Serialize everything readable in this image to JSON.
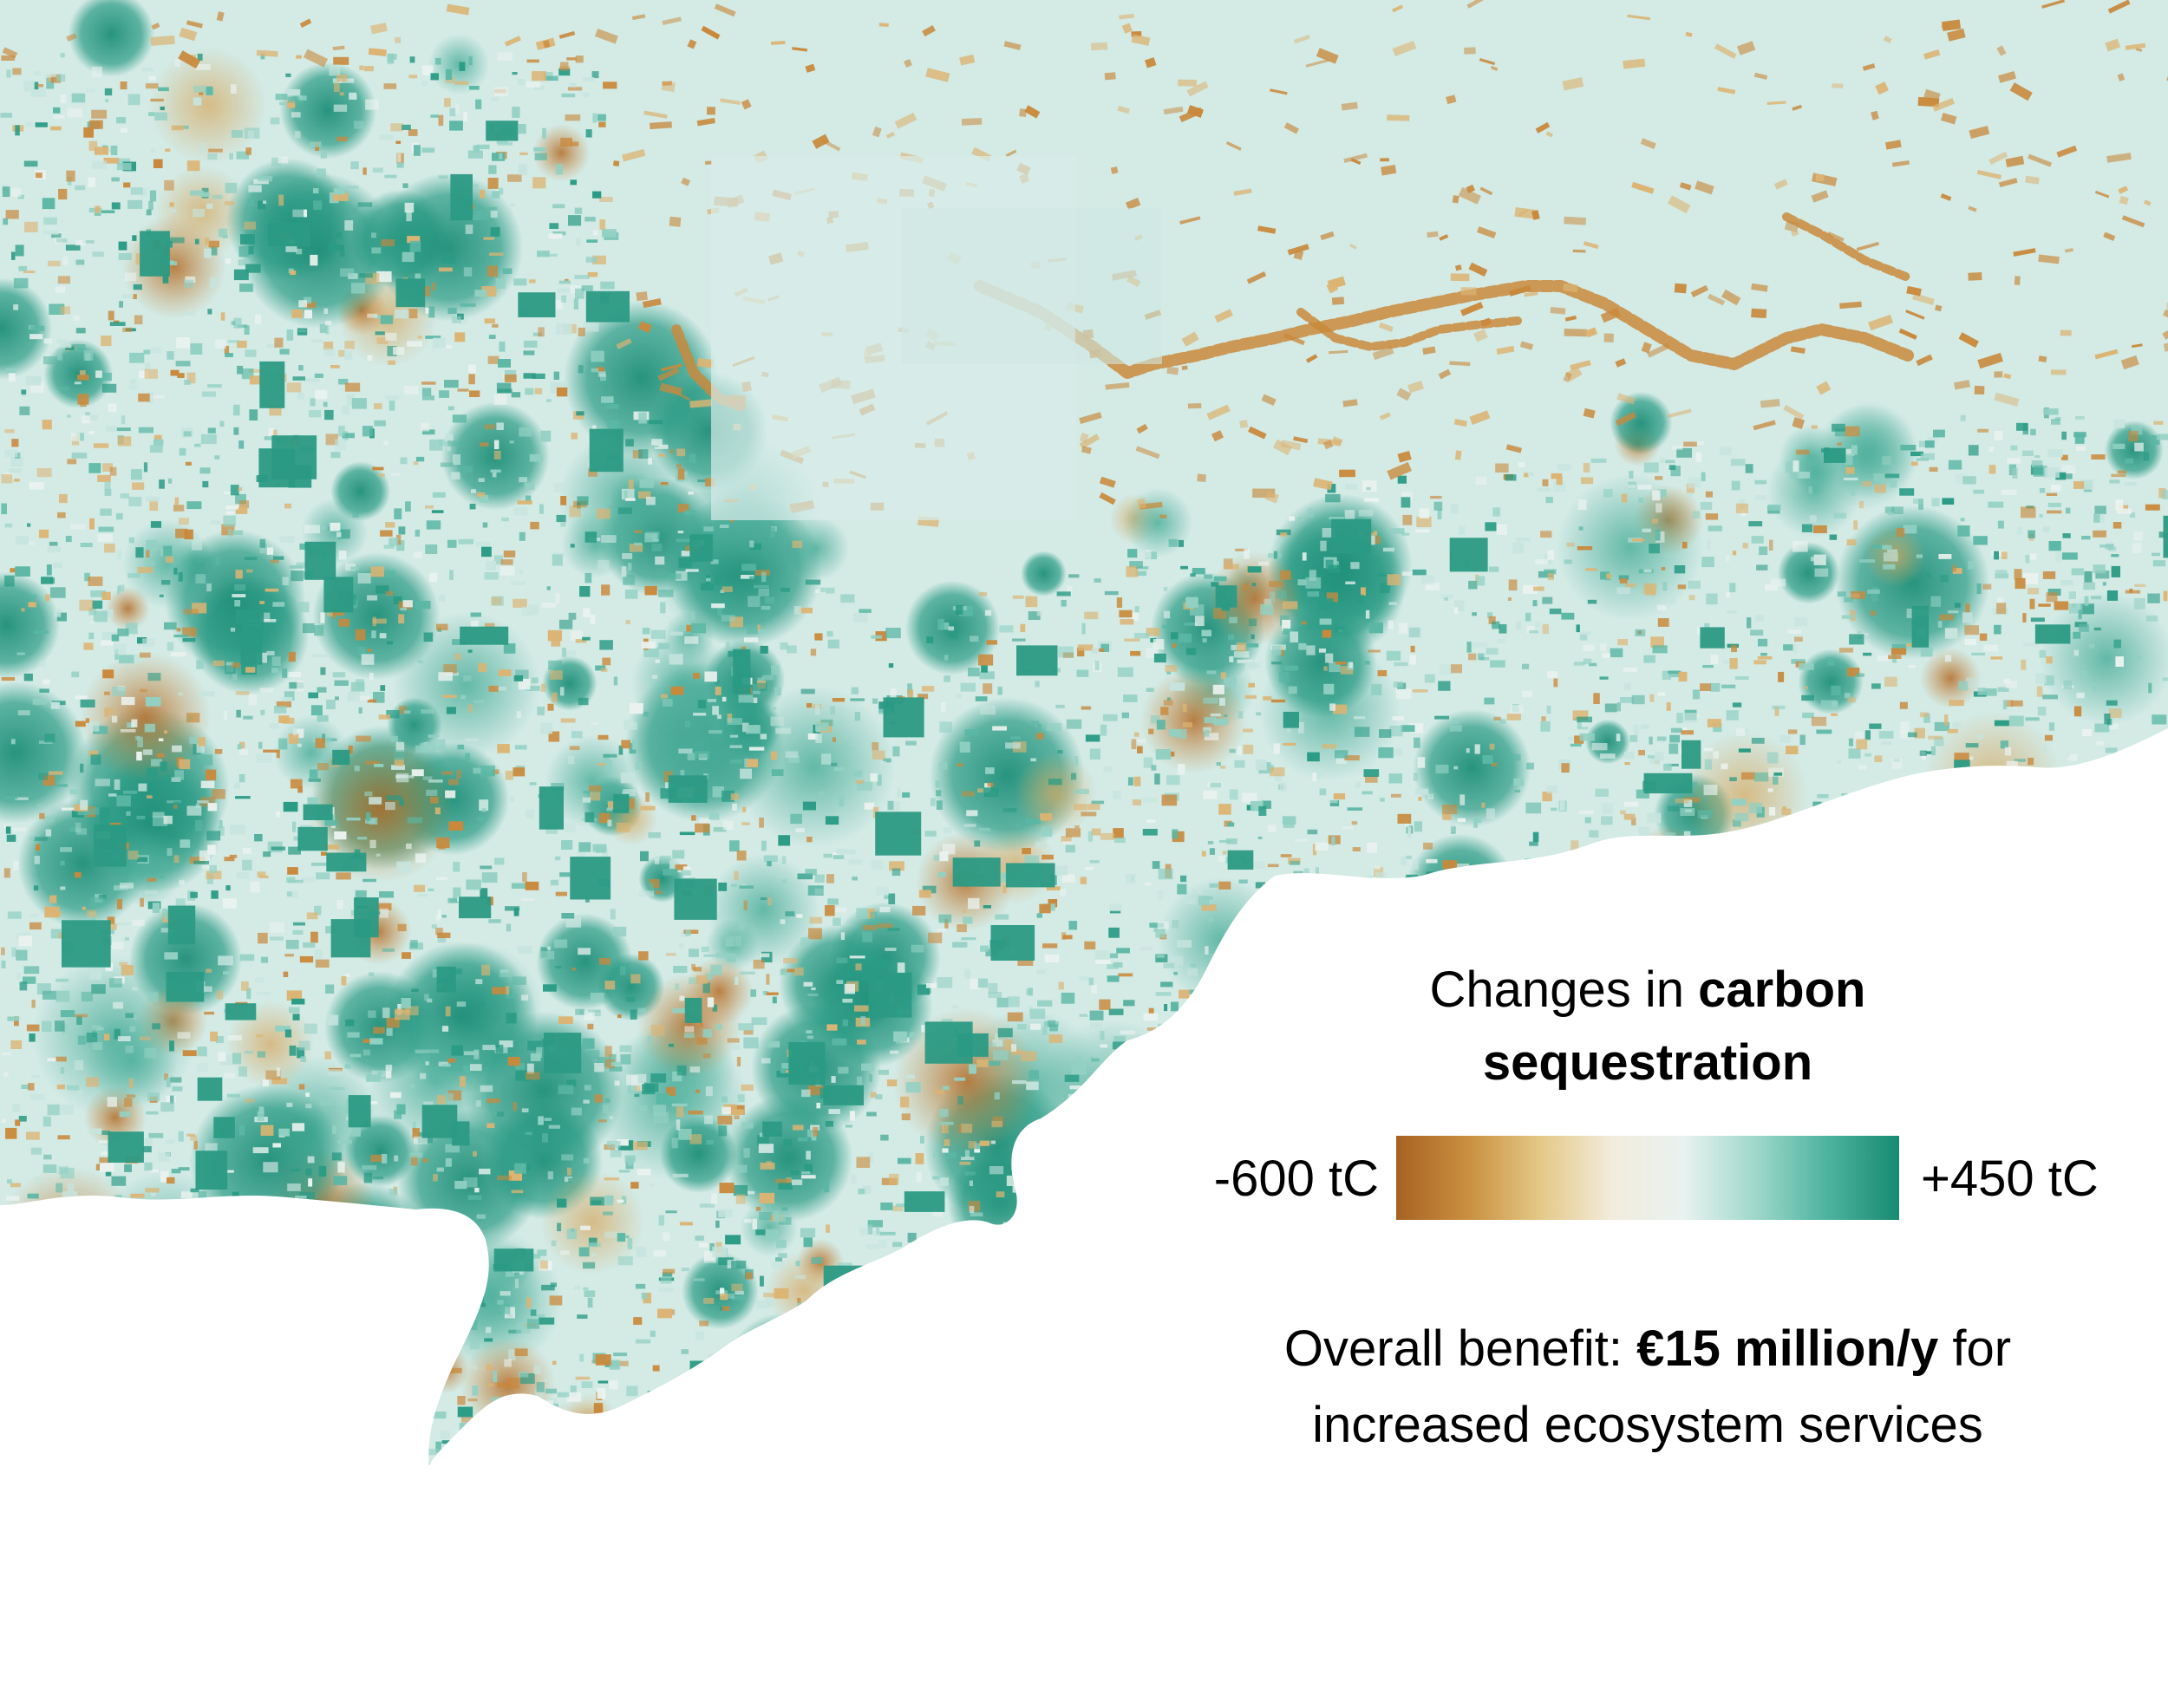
{
  "legend": {
    "title_prefix": "Changes in",
    "title_bold_1": "carbon",
    "title_bold_2": "sequestration",
    "min_label": "-600 tC",
    "max_label": "+450 tC",
    "gradient_colors": [
      "#a66222",
      "#c98f3f",
      "#e4c886",
      "#f2ecdc",
      "#e8f2f0",
      "#9fd8cb",
      "#4db39f",
      "#178a72"
    ]
  },
  "benefit": {
    "prefix": "Overall benefit:",
    "value": "€15 million/y",
    "suffix": "for",
    "line2": "increased ecosystem services"
  },
  "map": {
    "colors": {
      "background_light": "#d2e9e4",
      "background_mid": "#c7e4de",
      "gain_strong": "#2a9b85",
      "gain_mid": "#5bb7a5",
      "gain_light": "#92d0c3",
      "loss_strong": "#b06a27",
      "loss_mid": "#c9893c",
      "loss_light": "#dcb473",
      "neutral": "#eaf2ef"
    }
  }
}
